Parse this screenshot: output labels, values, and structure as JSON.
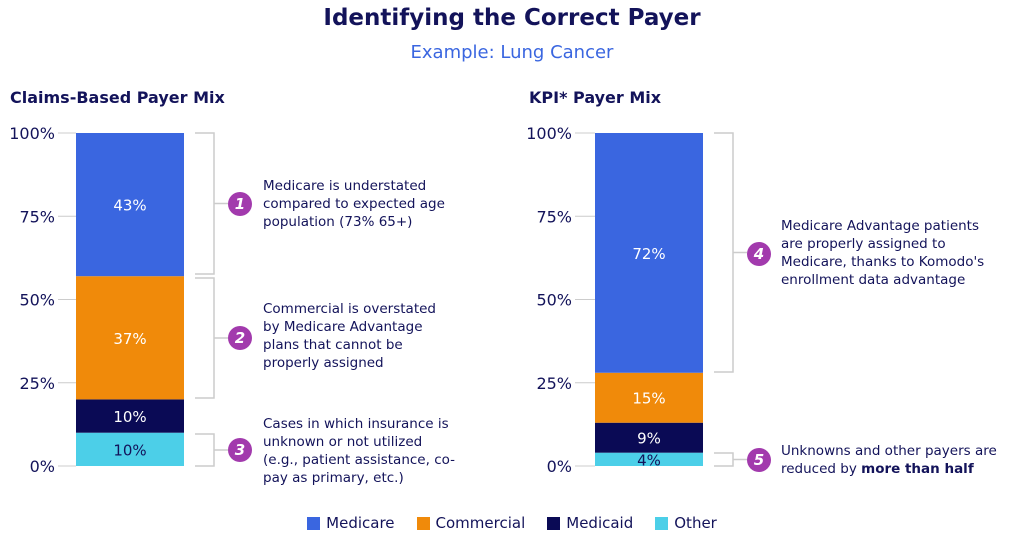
{
  "title": "Identifying the Correct Payer",
  "subtitle": "Example: Lung Cancer",
  "colors": {
    "Medicare": "#3a66e0",
    "Commercial": "#f08a0a",
    "Medicaid": "#0a0a55",
    "Other": "#4ccfe8",
    "badge": "#a23aad"
  },
  "chart_data": [
    {
      "type": "bar",
      "stacked": true,
      "title": "Claims-Based Payer Mix",
      "yticks": [
        "0%",
        "25%",
        "50%",
        "75%",
        "100%"
      ],
      "ylim": [
        0,
        100
      ],
      "series": [
        {
          "name": "Other",
          "value": 10,
          "label": "10%"
        },
        {
          "name": "Medicaid",
          "value": 10,
          "label": "10%"
        },
        {
          "name": "Commercial",
          "value": 37,
          "label": "37%"
        },
        {
          "name": "Medicare",
          "value": 43,
          "label": "43%"
        }
      ]
    },
    {
      "type": "bar",
      "stacked": true,
      "title": "KPI* Payer Mix",
      "yticks": [
        "0%",
        "25%",
        "50%",
        "75%",
        "100%"
      ],
      "ylim": [
        0,
        100
      ],
      "series": [
        {
          "name": "Other",
          "value": 4,
          "label": "4%"
        },
        {
          "name": "Medicaid",
          "value": 9,
          "label": "9%"
        },
        {
          "name": "Commercial",
          "value": 15,
          "label": "15%"
        },
        {
          "name": "Medicare",
          "value": 72,
          "label": "72%"
        }
      ]
    }
  ],
  "notes": [
    {
      "num": "1",
      "text": "Medicare is understated compared to expected age population (73% 65+)"
    },
    {
      "num": "2",
      "text": "Commercial is overstated by Medicare Advantage plans that cannot be properly assigned"
    },
    {
      "num": "3",
      "text": "Cases in which insurance is unknown or not utilized (e.g., patient assistance, co-pay as primary, etc.)"
    },
    {
      "num": "4",
      "text": "Medicare Advantage patients are properly assigned to Medicare, thanks to Komodo's enrollment data advantage"
    },
    {
      "num": "5",
      "text": "Unknowns and other payers are reduced by ",
      "bold": "more than half"
    }
  ],
  "legend": [
    "Medicare",
    "Commercial",
    "Medicaid",
    "Other"
  ]
}
